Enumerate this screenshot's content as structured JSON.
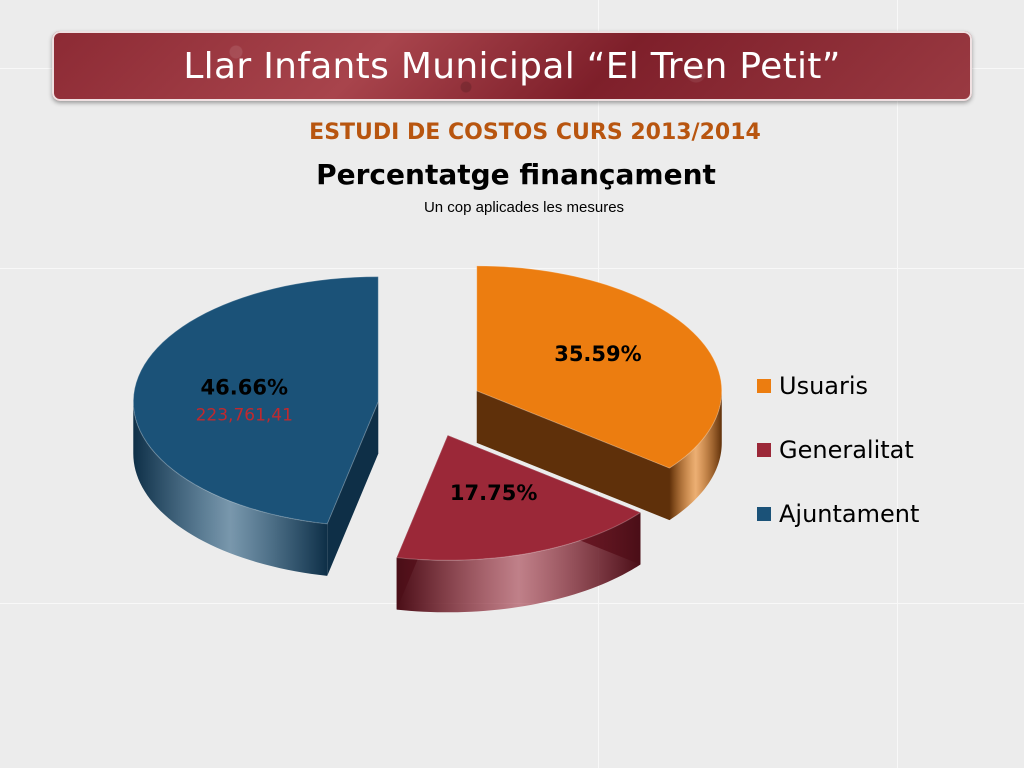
{
  "slide": {
    "title": "Llar Infants Municipal “El Tren Petit”",
    "kicker": "ESTUDI DE COSTOS CURS 2013/2014"
  },
  "chart_data": {
    "type": "pie",
    "title": "Percentatge finançament",
    "subtitle": "Un cop aplicades les mesures",
    "legend_position": "right",
    "series": [
      {
        "name": "Usuaris",
        "value": 35.59,
        "label": "35.59%",
        "color": "#ec7d10",
        "side_color": "#5f300a"
      },
      {
        "name": "Generalitat",
        "value": 17.75,
        "label": "17.75%",
        "color": "#9b2838",
        "side_color": "#4a0e17"
      },
      {
        "name": "Ajuntament",
        "value": 46.66,
        "label": "46.66%",
        "amount": "223,761,41",
        "color": "#1b5278",
        "side_color": "#0e2f47"
      }
    ]
  }
}
